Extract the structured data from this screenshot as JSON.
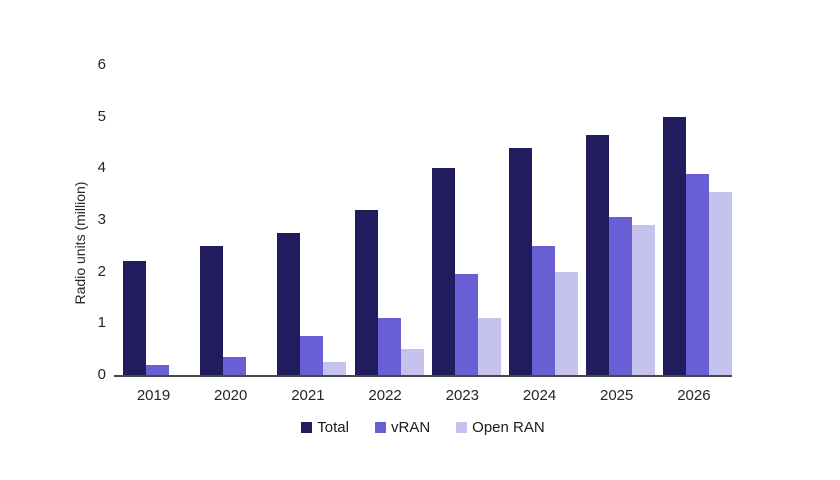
{
  "chart_data": {
    "type": "bar",
    "categories": [
      "2019",
      "2020",
      "2021",
      "2022",
      "2023",
      "2024",
      "2025",
      "2026"
    ],
    "series": [
      {
        "name": "Total",
        "color": "#211c5e",
        "values": [
          2.2,
          2.5,
          2.75,
          3.2,
          4.0,
          4.4,
          4.65,
          5.0
        ]
      },
      {
        "name": "vRAN",
        "color": "#675fd3",
        "values": [
          0.2,
          0.35,
          0.75,
          1.1,
          1.95,
          2.5,
          3.05,
          3.9
        ]
      },
      {
        "name": "Open RAN",
        "color": "#c5c3ed",
        "values": [
          0,
          0,
          0.25,
          0.5,
          1.1,
          2.0,
          2.9,
          3.55
        ]
      }
    ],
    "title": "",
    "xlabel": "",
    "ylabel": "Radio units (million)",
    "ylim": [
      0,
      6
    ],
    "yticks": [
      0,
      1,
      2,
      3,
      4,
      5,
      6
    ],
    "grid": false,
    "legend_position": "bottom"
  },
  "colors": {
    "axis": "#474747",
    "tick_text": "#262626",
    "background": "#ffffff"
  }
}
